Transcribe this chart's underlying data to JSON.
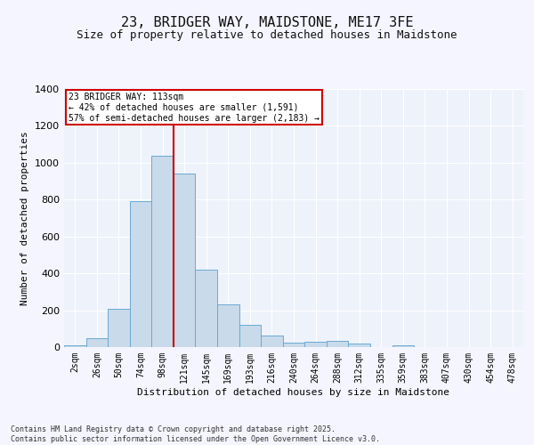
{
  "title1": "23, BRIDGER WAY, MAIDSTONE, ME17 3FE",
  "title2": "Size of property relative to detached houses in Maidstone",
  "xlabel": "Distribution of detached houses by size in Maidstone",
  "ylabel": "Number of detached properties",
  "categories": [
    "2sqm",
    "26sqm",
    "50sqm",
    "74sqm",
    "98sqm",
    "121sqm",
    "145sqm",
    "169sqm",
    "193sqm",
    "216sqm",
    "240sqm",
    "264sqm",
    "288sqm",
    "312sqm",
    "335sqm",
    "359sqm",
    "383sqm",
    "407sqm",
    "430sqm",
    "454sqm",
    "478sqm"
  ],
  "values": [
    10,
    50,
    210,
    790,
    1040,
    940,
    420,
    230,
    120,
    65,
    25,
    30,
    35,
    20,
    2,
    10,
    2,
    2,
    2,
    2,
    2
  ],
  "bar_color": "#c9daea",
  "bar_edge_color": "#6aaad4",
  "bg_color": "#eef2fa",
  "fig_bg_color": "#f5f5ff",
  "grid_color": "#ffffff",
  "vline_color": "#cc0000",
  "vline_x": 4.5,
  "annotation_text": "23 BRIDGER WAY: 113sqm\n← 42% of detached houses are smaller (1,591)\n57% of semi-detached houses are larger (2,183) →",
  "annotation_box_fc": "#ffffff",
  "annotation_box_ec": "#cc0000",
  "ylim": [
    0,
    1400
  ],
  "yticks": [
    0,
    200,
    400,
    600,
    800,
    1000,
    1200,
    1400
  ],
  "footnote": "Contains HM Land Registry data © Crown copyright and database right 2025.\nContains public sector information licensed under the Open Government Licence v3.0."
}
